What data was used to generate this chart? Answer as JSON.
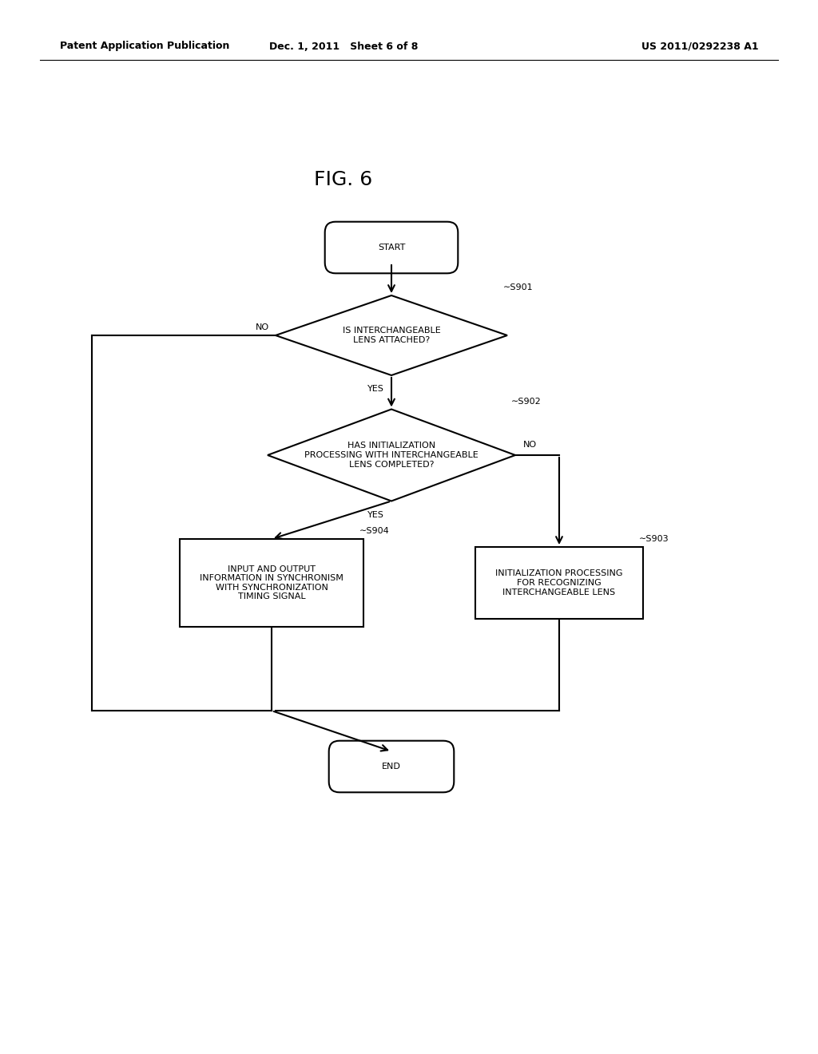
{
  "bg_color": "#ffffff",
  "text_color": "#000000",
  "line_color": "#000000",
  "header_left": "Patent Application Publication",
  "header_mid": "Dec. 1, 2011   Sheet 6 of 8",
  "header_right": "US 2011/0292238 A1",
  "fig_label": "FIG. 6",
  "start_label": "START",
  "end_label": "END",
  "s901_label": "IS INTERCHANGEABLE\nLENS ATTACHED?",
  "s901_step": "S901",
  "s902_label": "HAS INITIALIZATION\nPROCESSING WITH INTERCHANGEABLE\nLENS COMPLETED?",
  "s902_step": "S902",
  "s903_label": "INITIALIZATION PROCESSING\nFOR RECOGNIZING\nINTERCHANGEABLE LENS",
  "s903_step": "S903",
  "s904_label": "INPUT AND OUTPUT\nINFORMATION IN SYNCHRONISM\nWITH SYNCHRONIZATION\nTIMING SIGNAL",
  "s904_step": "S904",
  "yes_label": "YES",
  "no_label": "NO",
  "font_size_node": 8,
  "font_size_step": 8,
  "font_size_branch": 8,
  "font_size_header": 9,
  "font_size_fig": 18,
  "lw": 1.5
}
